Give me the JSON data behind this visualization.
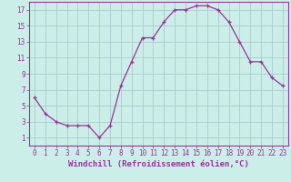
{
  "x": [
    0,
    1,
    2,
    3,
    4,
    5,
    6,
    7,
    8,
    9,
    10,
    11,
    12,
    13,
    14,
    15,
    16,
    17,
    18,
    19,
    20,
    21,
    22,
    23
  ],
  "y": [
    6,
    4,
    3,
    2.5,
    2.5,
    2.5,
    1,
    2.5,
    7.5,
    10.5,
    13.5,
    13.5,
    15.5,
    17,
    17,
    17.5,
    17.5,
    17,
    15.5,
    13,
    10.5,
    10.5,
    8.5,
    7.5
  ],
  "line_color": "#993399",
  "marker": "+",
  "bg_color": "#cceee8",
  "grid_color": "#aacccc",
  "tick_label_color": "#993399",
  "xlabel": "Windchill (Refroidissement éolien,°C)",
  "xlabel_color": "#993399",
  "yticks": [
    1,
    3,
    5,
    7,
    9,
    11,
    13,
    15,
    17
  ],
  "ylim": [
    0,
    18
  ],
  "xlim": [
    -0.5,
    23.5
  ],
  "xticks": [
    0,
    1,
    2,
    3,
    4,
    5,
    6,
    7,
    8,
    9,
    10,
    11,
    12,
    13,
    14,
    15,
    16,
    17,
    18,
    19,
    20,
    21,
    22,
    23
  ],
  "font_size": 5.5,
  "xlabel_font_size": 6.5
}
